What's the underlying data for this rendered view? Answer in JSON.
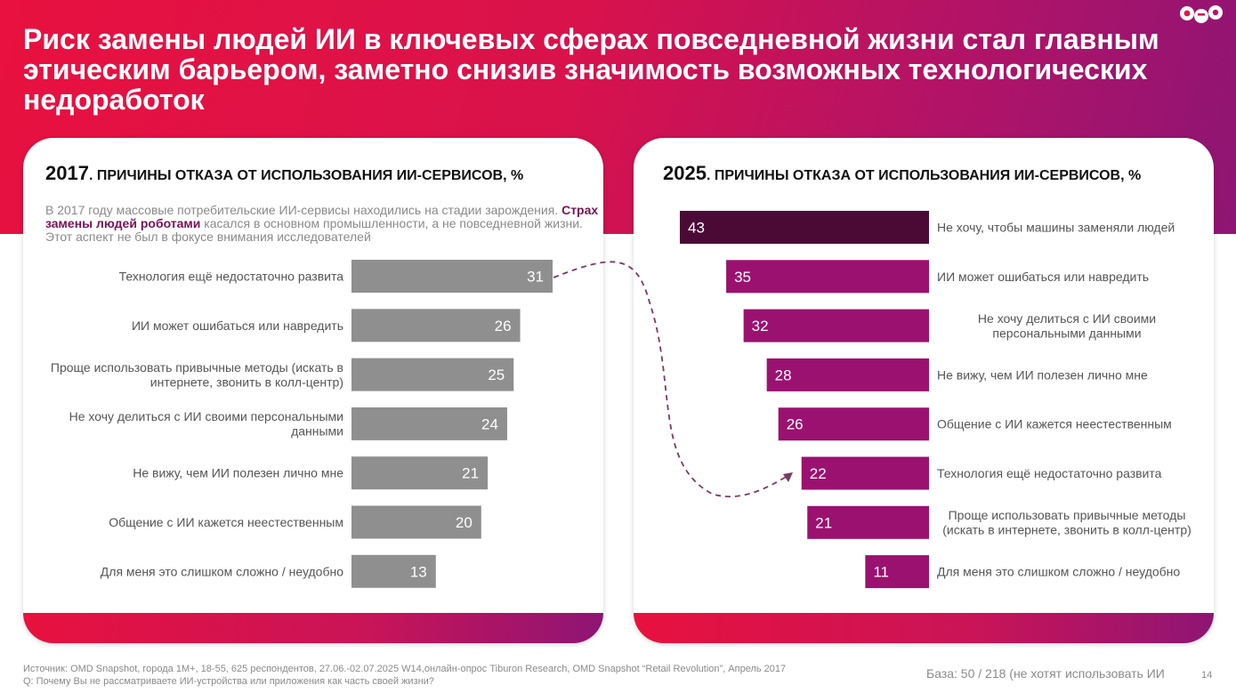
{
  "title": "Риск замены людей ИИ в ключевых сферах повседневной жизни стал главным этическим барьером, заметно снизив значимость возможных технологических недоработок",
  "left_panel": {
    "year": "2017",
    "heading": ". ПРИЧИНЫ ОТКАЗА ОТ ИСПОЛЬЗОВАНИЯ ИИ-СЕРВИСОВ, %",
    "note_before": "В 2017 году массовые потребительские ИИ-сервисы находились на стадии зарождения. ",
    "note_highlight": "Страх замены людей роботами",
    "note_after": " касался в основном промышленности, а не повседневной жизни. Этот аспект не был в фокусе внимания исследователей"
  },
  "right_panel": {
    "year": "2025",
    "heading": ". ПРИЧИНЫ ОТКАЗА ОТ ИСПОЛЬЗОВАНИЯ ИИ-СЕРВИСОВ, %"
  },
  "footer": {
    "source": "Источник: OMD Snapshot, города 1М+, 18-55, 625 респондентов, 27.06.-02.07.2025 W14,онлайн-опрос Tiburon Research, OMD Snapshot “Retail Revolution”, Апрель 2017",
    "question": "Q: Почему Вы не рассматриваете ИИ-устройства или приложения как часть своей жизни?",
    "base": "База: 50 / 218 (не хотят использовать ИИ",
    "page_number": "14"
  },
  "colors": {
    "accent_red": "#e8113f",
    "accent_purple": "#9b1170",
    "bar_2017": "#8f8f8f",
    "bar_2025": "#9b1170",
    "bar_2025_top": "#4b0a36"
  },
  "chart_data": [
    {
      "type": "bar",
      "orientation": "horizontal",
      "title": "2017. ПРИЧИНЫ ОТКАЗА ОТ ИСПОЛЬЗОВАНИЯ ИИ-СЕРВИСОВ, %",
      "categories": [
        "Технология ещё недостаточно развита",
        "ИИ может ошибаться или навредить",
        "Проще использовать привычные методы (искать в интернете, звонить в колл-центр)",
        "Не хочу делиться с ИИ своими персональными данными",
        "Не вижу, чем ИИ полезен лично мне",
        "Общение с ИИ кажется неестественным",
        "Для меня это слишком сложно / неудобно"
      ],
      "category_lines": [
        [
          "Технология ещё недостаточно развита"
        ],
        [
          "ИИ может ошибаться или навредить"
        ],
        [
          "Проще использовать привычные методы (искать в",
          "интернете, звонить в колл-центр)"
        ],
        [
          "Не хочу делиться с ИИ своими персональными",
          "данными"
        ],
        [
          "Не вижу, чем ИИ полезен лично мне"
        ],
        [
          "Общение с ИИ кажется неестественным"
        ],
        [
          "Для меня это слишком сложно / неудобно"
        ]
      ],
      "values": [
        31,
        26,
        25,
        24,
        21,
        20,
        13
      ]
    },
    {
      "type": "bar",
      "orientation": "horizontal",
      "title": "2025. ПРИЧИНЫ ОТКАЗА ОТ ИСПОЛЬЗОВАНИЯ ИИ-СЕРВИСОВ, %",
      "categories": [
        "Не хочу, чтобы машины заменяли людей",
        "ИИ может ошибаться или навредить",
        "Не хочу делиться с ИИ своими персональными данными",
        "Не вижу, чем ИИ полезен лично мне",
        "Общение с ИИ кажется неестественным",
        "Технология ещё недостаточно развита",
        "Проще использовать привычные методы (искать в интернете, звонить в колл-центр)",
        "Для меня это слишком сложно / неудобно"
      ],
      "category_lines": [
        [
          "Не хочу, чтобы машины заменяли людей"
        ],
        [
          "ИИ может ошибаться или навредить"
        ],
        [
          "Не хочу делиться с ИИ своими",
          "персональными данными"
        ],
        [
          "Не вижу, чем ИИ полезен лично мне"
        ],
        [
          "Общение с ИИ кажется неестественным"
        ],
        [
          "Технология ещё недостаточно развита"
        ],
        [
          "Проще использовать привычные методы",
          "(искать в интернете, звонить в колл-центр)"
        ],
        [
          "Для меня это слишком сложно / неудобно"
        ]
      ],
      "values": [
        43,
        35,
        32,
        28,
        26,
        22,
        21,
        11
      ]
    }
  ]
}
